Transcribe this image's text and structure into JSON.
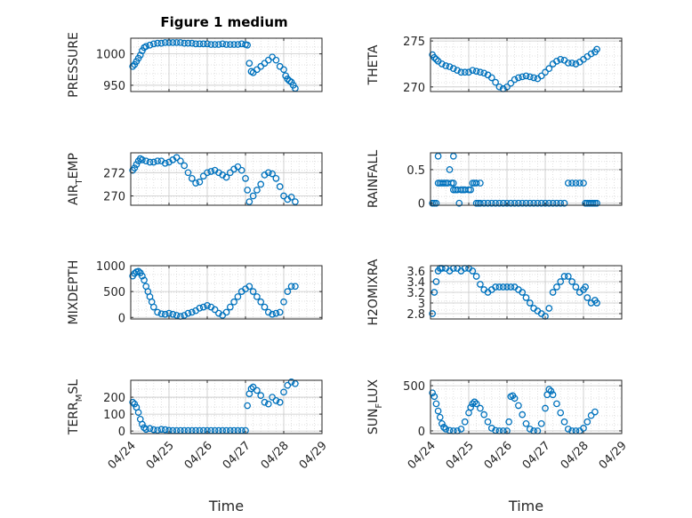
{
  "figure": {
    "title": "Figure 1 medium"
  },
  "colors": {
    "marker": "#0072BD",
    "axis": "#262626",
    "grid": "#d9d9d9"
  },
  "chart_data": [
    {
      "type": "scatter",
      "ylabel": "PRESSURE",
      "yticks": [
        950,
        1000
      ],
      "ylim": [
        940,
        1025
      ],
      "xlim": [
        0,
        5
      ],
      "xticks": [
        0,
        1,
        2,
        3,
        4,
        5
      ],
      "xticklabels": [
        "04/24",
        "04/25",
        "04/26",
        "04/27",
        "04/28",
        "04/29"
      ],
      "show_xticklabels": false,
      "xlabel": "",
      "series": [
        {
          "x": [
            0.05,
            0.1,
            0.15,
            0.2,
            0.25,
            0.3,
            0.35,
            0.4,
            0.5,
            0.6,
            0.7,
            0.8,
            0.9,
            1.0,
            1.1,
            1.2,
            1.3,
            1.4,
            1.5,
            1.6,
            1.7,
            1.8,
            1.9,
            2.0,
            2.1,
            2.2,
            2.3,
            2.4,
            2.5,
            2.6,
            2.7,
            2.8,
            2.9,
            3.0,
            3.05,
            3.1,
            3.15,
            3.2,
            3.3,
            3.4,
            3.5,
            3.6,
            3.7,
            3.8,
            3.9,
            4.0,
            4.05,
            4.1,
            4.15,
            4.2,
            4.25,
            4.3
          ],
          "y": [
            980,
            983,
            988,
            993,
            998,
            1005,
            1010,
            1012,
            1014,
            1016,
            1017,
            1017,
            1018,
            1018,
            1018,
            1018,
            1018,
            1017,
            1017,
            1017,
            1016,
            1016,
            1016,
            1016,
            1015,
            1015,
            1015,
            1016,
            1015,
            1015,
            1015,
            1015,
            1016,
            1015,
            1014,
            985,
            972,
            970,
            975,
            980,
            985,
            990,
            995,
            990,
            980,
            975,
            965,
            960,
            957,
            955,
            950,
            945
          ]
        }
      ]
    },
    {
      "type": "scatter",
      "ylabel": "THETA",
      "yticks": [
        270,
        275
      ],
      "ylim": [
        269.5,
        275.3
      ],
      "xlim": [
        0,
        5
      ],
      "xticks": [
        0,
        1,
        2,
        3,
        4,
        5
      ],
      "xticklabels": [
        "04/24",
        "04/25",
        "04/26",
        "04/27",
        "04/28",
        "04/29"
      ],
      "show_xticklabels": false,
      "xlabel": "",
      "series": [
        {
          "x": [
            0.05,
            0.1,
            0.15,
            0.2,
            0.3,
            0.4,
            0.5,
            0.6,
            0.7,
            0.8,
            0.9,
            1.0,
            1.1,
            1.2,
            1.3,
            1.4,
            1.5,
            1.6,
            1.7,
            1.8,
            1.9,
            2.0,
            2.1,
            2.2,
            2.3,
            2.4,
            2.5,
            2.6,
            2.7,
            2.8,
            2.9,
            3.0,
            3.1,
            3.2,
            3.3,
            3.4,
            3.5,
            3.6,
            3.7,
            3.8,
            3.9,
            4.0,
            4.1,
            4.2,
            4.3,
            4.35
          ],
          "y": [
            273.5,
            273.2,
            273,
            272.8,
            272.5,
            272.3,
            272.2,
            272,
            271.8,
            271.6,
            271.6,
            271.6,
            271.8,
            271.7,
            271.6,
            271.5,
            271.3,
            271,
            270.5,
            270,
            269.8,
            270,
            270.4,
            270.8,
            271,
            271.1,
            271.2,
            271.1,
            271,
            270.9,
            271.2,
            271.6,
            272,
            272.5,
            272.8,
            273,
            272.9,
            272.6,
            272.6,
            272.5,
            272.7,
            273,
            273.3,
            273.6,
            273.8,
            274.1
          ]
        }
      ]
    },
    {
      "type": "scatter",
      "ylabel": "AIR_TEMP",
      "yticks": [
        270,
        272
      ],
      "ylim": [
        269.2,
        273.7
      ],
      "xlim": [
        0,
        5
      ],
      "xticks": [
        0,
        1,
        2,
        3,
        4,
        5
      ],
      "xticklabels": [
        "04/24",
        "04/25",
        "04/26",
        "04/27",
        "04/28",
        "04/29"
      ],
      "show_xticklabels": false,
      "xlabel": "",
      "series": [
        {
          "x": [
            0.05,
            0.1,
            0.15,
            0.2,
            0.25,
            0.3,
            0.4,
            0.5,
            0.6,
            0.7,
            0.8,
            0.9,
            1.0,
            1.1,
            1.2,
            1.3,
            1.4,
            1.5,
            1.6,
            1.7,
            1.8,
            1.9,
            2.0,
            2.1,
            2.2,
            2.3,
            2.4,
            2.5,
            2.6,
            2.7,
            2.8,
            2.9,
            3.0,
            3.05,
            3.1,
            3.2,
            3.3,
            3.4,
            3.5,
            3.6,
            3.7,
            3.8,
            3.9,
            4.0,
            4.1,
            4.2,
            4.3
          ],
          "y": [
            272.2,
            272.4,
            272.7,
            273,
            273.2,
            273.1,
            273,
            272.9,
            272.9,
            273,
            273,
            272.8,
            272.9,
            273.1,
            273.3,
            273,
            272.6,
            272,
            271.5,
            271.1,
            271.2,
            271.7,
            272,
            272.1,
            272.2,
            272,
            271.8,
            271.6,
            272,
            272.3,
            272.5,
            272.2,
            271.5,
            270.5,
            269.5,
            270,
            270.5,
            271,
            271.8,
            272,
            271.9,
            271.5,
            270.8,
            270,
            269.7,
            269.9,
            269.5
          ]
        }
      ]
    },
    {
      "type": "scatter",
      "ylabel": "RAINFALL",
      "yticks": [
        0,
        0.5
      ],
      "ylim": [
        -0.03,
        0.75
      ],
      "xlim": [
        0,
        5
      ],
      "xticks": [
        0,
        1,
        2,
        3,
        4,
        5
      ],
      "xticklabels": [
        "04/24",
        "04/25",
        "04/26",
        "04/27",
        "04/28",
        "04/29"
      ],
      "show_xticklabels": false,
      "xlabel": "",
      "series": [
        {
          "x": [
            0.05,
            0.1,
            0.15,
            0.2,
            0.2,
            0.25,
            0.3,
            0.35,
            0.4,
            0.45,
            0.5,
            0.55,
            0.6,
            0.6,
            0.6,
            0.65,
            0.7,
            0.75,
            0.8,
            0.85,
            0.9,
            1.0,
            1.05,
            1.1,
            1.15,
            1.2,
            1.25,
            1.3,
            1.2,
            1.3,
            1.4,
            1.5,
            1.6,
            1.7,
            1.8,
            1.9,
            2.0,
            2.1,
            2.2,
            2.3,
            2.4,
            2.5,
            2.6,
            2.7,
            2.8,
            2.9,
            3.0,
            3.1,
            3.2,
            3.3,
            3.4,
            3.5,
            3.6,
            3.7,
            3.8,
            3.9,
            4.0,
            4.05,
            4.1,
            4.15,
            4.2,
            4.25,
            4.3,
            4.35
          ],
          "y": [
            0,
            0,
            0,
            0.3,
            0.7,
            0.3,
            0.3,
            0.3,
            0.3,
            0.3,
            0.5,
            0.3,
            0.3,
            0.2,
            0.7,
            0.2,
            0.2,
            0,
            0.2,
            0.2,
            0.2,
            0.2,
            0.2,
            0.3,
            0.3,
            0.3,
            0,
            0.3,
            0,
            0,
            0,
            0,
            0,
            0,
            0,
            0,
            0,
            0,
            0,
            0,
            0,
            0,
            0,
            0,
            0,
            0,
            0,
            0,
            0,
            0,
            0,
            0,
            0.3,
            0.3,
            0.3,
            0.3,
            0.3,
            0,
            0,
            0,
            0,
            0,
            0,
            0
          ]
        }
      ]
    },
    {
      "type": "scatter",
      "ylabel": "MIXDEPTH",
      "yticks": [
        0,
        500,
        1000
      ],
      "ylim": [
        -30,
        1000
      ],
      "xlim": [
        0,
        5
      ],
      "xticks": [
        0,
        1,
        2,
        3,
        4,
        5
      ],
      "xticklabels": [
        "04/24",
        "04/25",
        "04/26",
        "04/27",
        "04/28",
        "04/29"
      ],
      "show_xticklabels": false,
      "xlabel": "",
      "series": [
        {
          "x": [
            0.05,
            0.1,
            0.15,
            0.2,
            0.25,
            0.3,
            0.35,
            0.4,
            0.45,
            0.5,
            0.55,
            0.6,
            0.7,
            0.8,
            0.9,
            1.0,
            1.1,
            1.2,
            1.3,
            1.4,
            1.5,
            1.6,
            1.7,
            1.8,
            1.9,
            2.0,
            2.1,
            2.2,
            2.3,
            2.4,
            2.5,
            2.6,
            2.7,
            2.8,
            2.9,
            3.0,
            3.1,
            3.2,
            3.3,
            3.4,
            3.5,
            3.6,
            3.7,
            3.8,
            3.9,
            4.0,
            4.1,
            4.2,
            4.3
          ],
          "y": [
            800,
            850,
            880,
            890,
            860,
            800,
            720,
            600,
            500,
            400,
            300,
            200,
            100,
            70,
            60,
            80,
            60,
            40,
            20,
            40,
            80,
            100,
            130,
            180,
            200,
            230,
            200,
            150,
            80,
            40,
            100,
            200,
            300,
            400,
            500,
            550,
            600,
            500,
            400,
            300,
            200,
            100,
            60,
            80,
            100,
            300,
            500,
            600,
            600
          ]
        }
      ]
    },
    {
      "type": "scatter",
      "ylabel": "H2OMIXRA",
      "yticks": [
        2.8,
        3,
        3.2,
        3.4,
        3.6
      ],
      "ylim": [
        2.7,
        3.7
      ],
      "xlim": [
        0,
        5
      ],
      "xticks": [
        0,
        1,
        2,
        3,
        4,
        5
      ],
      "xticklabels": [
        "04/24",
        "04/25",
        "04/26",
        "04/27",
        "04/28",
        "04/29"
      ],
      "show_xticklabels": false,
      "xlabel": "",
      "series": [
        {
          "x": [
            0.05,
            0.1,
            0.15,
            0.2,
            0.25,
            0.3,
            0.4,
            0.5,
            0.6,
            0.7,
            0.8,
            0.9,
            1.0,
            1.1,
            1.2,
            1.3,
            1.4,
            1.5,
            1.6,
            1.7,
            1.8,
            1.9,
            2.0,
            2.1,
            2.2,
            2.3,
            2.4,
            2.5,
            2.6,
            2.7,
            2.8,
            2.9,
            3.0,
            3.1,
            3.2,
            3.3,
            3.4,
            3.5,
            3.6,
            3.7,
            3.8,
            3.9,
            4.0,
            4.05,
            4.1,
            4.2,
            4.3,
            4.35
          ],
          "y": [
            2.8,
            3.2,
            3.4,
            3.6,
            3.65,
            3.65,
            3.65,
            3.6,
            3.65,
            3.65,
            3.6,
            3.65,
            3.65,
            3.6,
            3.5,
            3.35,
            3.25,
            3.2,
            3.25,
            3.3,
            3.3,
            3.3,
            3.3,
            3.3,
            3.3,
            3.25,
            3.2,
            3.1,
            3,
            2.9,
            2.85,
            2.8,
            2.75,
            2.9,
            3.2,
            3.3,
            3.4,
            3.5,
            3.5,
            3.4,
            3.3,
            3.2,
            3.25,
            3.3,
            3.1,
            3.0,
            3.05,
            3.0
          ]
        }
      ]
    },
    {
      "type": "scatter",
      "ylabel": "TERR_MSL",
      "yticks": [
        0,
        100,
        200
      ],
      "ylim": [
        -15,
        300
      ],
      "xlim": [
        0,
        5
      ],
      "xticks": [
        0,
        1,
        2,
        3,
        4,
        5
      ],
      "xticklabels": [
        "04/24",
        "04/25",
        "04/26",
        "04/27",
        "04/28",
        "04/29"
      ],
      "show_xticklabels": true,
      "xlabel": "Time",
      "series": [
        {
          "x": [
            0.05,
            0.1,
            0.15,
            0.2,
            0.25,
            0.3,
            0.35,
            0.4,
            0.5,
            0.6,
            0.7,
            0.8,
            0.9,
            1.0,
            1.1,
            1.2,
            1.3,
            1.4,
            1.5,
            1.6,
            1.7,
            1.8,
            1.9,
            2.0,
            2.1,
            2.2,
            2.3,
            2.4,
            2.5,
            2.6,
            2.7,
            2.8,
            2.9,
            3.0,
            3.05,
            3.1,
            3.15,
            3.2,
            3.3,
            3.4,
            3.5,
            3.6,
            3.7,
            3.8,
            3.9,
            4.0,
            4.1,
            4.2,
            4.3
          ],
          "y": [
            170,
            160,
            140,
            110,
            70,
            40,
            20,
            10,
            15,
            8,
            5,
            10,
            8,
            4,
            3,
            3,
            3,
            3,
            3,
            3,
            3,
            3,
            3,
            3,
            3,
            3,
            3,
            3,
            3,
            3,
            3,
            3,
            3,
            3,
            150,
            220,
            250,
            260,
            240,
            210,
            170,
            160,
            200,
            180,
            170,
            230,
            270,
            290,
            280
          ]
        }
      ]
    },
    {
      "type": "scatter",
      "ylabel": "SUN_FLUX",
      "yticks": [
        0,
        500
      ],
      "ylim": [
        -30,
        560
      ],
      "xlim": [
        0,
        5
      ],
      "xticks": [
        0,
        1,
        2,
        3,
        4,
        5
      ],
      "xticklabels": [
        "04/24",
        "04/25",
        "04/26",
        "04/27",
        "04/28",
        "04/29"
      ],
      "show_xticklabels": true,
      "xlabel": "Time",
      "series": [
        {
          "x": [
            0.05,
            0.1,
            0.15,
            0.2,
            0.25,
            0.3,
            0.35,
            0.4,
            0.5,
            0.6,
            0.7,
            0.8,
            0.9,
            1.0,
            1.05,
            1.1,
            1.15,
            1.2,
            1.3,
            1.4,
            1.5,
            1.6,
            1.7,
            1.8,
            1.9,
            2.0,
            2.05,
            2.1,
            2.15,
            2.2,
            2.3,
            2.4,
            2.5,
            2.6,
            2.7,
            2.8,
            2.9,
            3.0,
            3.05,
            3.1,
            3.15,
            3.2,
            3.3,
            3.4,
            3.5,
            3.6,
            3.7,
            3.8,
            3.9,
            4.0,
            4.1,
            4.2,
            4.3
          ],
          "y": [
            420,
            380,
            300,
            220,
            150,
            80,
            40,
            20,
            5,
            0,
            0,
            20,
            100,
            200,
            260,
            300,
            320,
            300,
            250,
            180,
            100,
            30,
            5,
            0,
            0,
            0,
            100,
            380,
            390,
            360,
            280,
            180,
            80,
            20,
            0,
            0,
            80,
            250,
            400,
            460,
            440,
            400,
            300,
            200,
            100,
            20,
            0,
            0,
            0,
            30,
            100,
            170,
            210
          ]
        }
      ]
    }
  ]
}
